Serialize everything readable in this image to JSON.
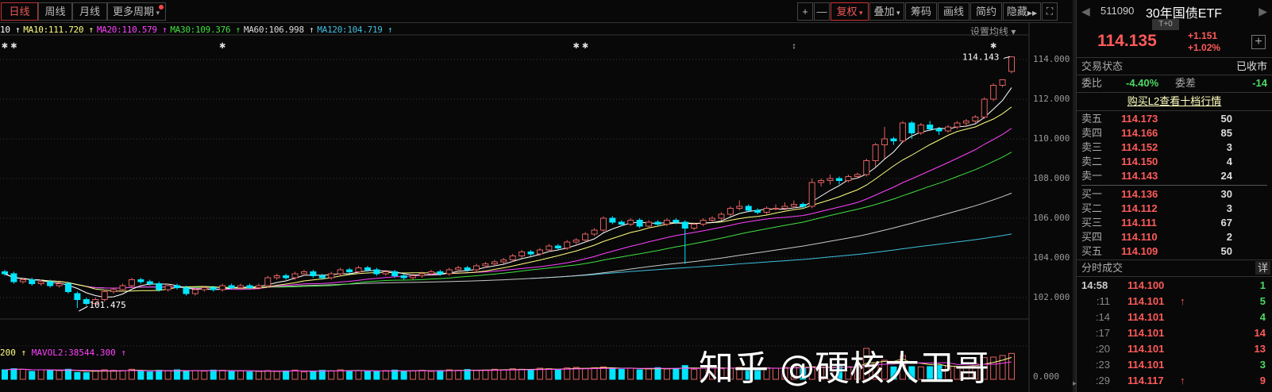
{
  "toolbar": {
    "period_tabs": [
      "日线",
      "周线",
      "月线",
      "更多周期"
    ],
    "active_tab": "日线",
    "buttons": [
      "+",
      "—",
      "复权",
      "叠加",
      "筹码",
      "画线",
      "简约",
      "隐藏"
    ],
    "fullscreen_icon": "expand-icon"
  },
  "ma_legend": {
    "ma5": "10 ↑",
    "ma10": "MA10:111.720 ↑",
    "ma20": "MA20:110.579 ↑",
    "ma30": "MA30:109.376 ↑",
    "ma60": "MA60:106.998 ↑",
    "ma120": "MA120:104.719 ↑",
    "settings": "设置均线 ▾"
  },
  "vol_legend": {
    "vol": "200 ↑",
    "mavol2": "MAVOL2:38544.300 ↑"
  },
  "colors": {
    "up": "#e06060",
    "down": "#00e5ff",
    "ma5": "#ffffff",
    "ma10": "#ffff80",
    "ma20": "#ff40ff",
    "ma30": "#40e040",
    "ma60": "#c8c8c8",
    "ma120": "#40c0e0"
  },
  "chart_data": {
    "type": "candlestick",
    "y_ticks": [
      "114.000",
      "112.000",
      "110.000",
      "108.000",
      "106.000",
      "104.000",
      "102.000"
    ],
    "ylim": [
      101.0,
      115.5
    ],
    "vol_ticks": [
      "0.000"
    ],
    "high_label": "114.143",
    "low_label": "101.475",
    "markers": [
      {
        "i": 0,
        "g": "✱"
      },
      {
        "i": 1,
        "g": "✱"
      },
      {
        "i": 24,
        "g": "✱"
      },
      {
        "i": 63,
        "g": "✱"
      },
      {
        "i": 64,
        "g": "✱"
      },
      {
        "i": 87,
        "g": "↕"
      },
      {
        "i": 109,
        "g": "✱"
      }
    ],
    "ohlc": [
      [
        103.3,
        103.4,
        103.1,
        103.2
      ],
      [
        103.2,
        103.3,
        102.7,
        102.8
      ],
      [
        102.8,
        103.0,
        102.7,
        102.9
      ],
      [
        102.9,
        103.0,
        102.6,
        102.7
      ],
      [
        102.7,
        102.9,
        102.6,
        102.8
      ],
      [
        102.8,
        102.9,
        102.5,
        102.6
      ],
      [
        102.6,
        102.8,
        102.5,
        102.7
      ],
      [
        102.7,
        102.8,
        102.2,
        102.3
      ],
      [
        102.2,
        102.3,
        101.475,
        101.9
      ],
      [
        101.9,
        102.0,
        101.6,
        101.7
      ],
      [
        101.7,
        102.0,
        101.6,
        101.9
      ],
      [
        101.9,
        102.4,
        101.8,
        102.3
      ],
      [
        102.3,
        102.5,
        102.2,
        102.4
      ],
      [
        102.4,
        102.7,
        102.3,
        102.6
      ],
      [
        102.6,
        103.0,
        102.5,
        102.9
      ],
      [
        102.9,
        103.0,
        102.7,
        102.8
      ],
      [
        102.8,
        102.9,
        102.6,
        102.7
      ],
      [
        102.7,
        102.8,
        102.3,
        102.4
      ],
      [
        102.4,
        102.7,
        102.3,
        102.6
      ],
      [
        102.6,
        102.7,
        102.4,
        102.5
      ],
      [
        102.5,
        102.6,
        102.1,
        102.2
      ],
      [
        102.2,
        102.5,
        102.1,
        102.4
      ],
      [
        102.4,
        102.6,
        102.3,
        102.5
      ],
      [
        102.5,
        102.6,
        102.3,
        102.4
      ],
      [
        102.4,
        102.7,
        102.3,
        102.6
      ],
      [
        102.6,
        102.7,
        102.4,
        102.5
      ],
      [
        102.5,
        102.7,
        102.4,
        102.6
      ],
      [
        102.6,
        102.7,
        102.4,
        102.5
      ],
      [
        102.5,
        102.7,
        102.4,
        102.6
      ],
      [
        102.6,
        103.1,
        102.5,
        103.0
      ],
      [
        103.0,
        103.2,
        102.9,
        103.1
      ],
      [
        103.1,
        103.2,
        102.9,
        103.0
      ],
      [
        103.0,
        103.3,
        102.9,
        103.2
      ],
      [
        103.2,
        103.4,
        103.1,
        103.3
      ],
      [
        103.3,
        103.4,
        103.0,
        103.1
      ],
      [
        103.1,
        103.2,
        102.9,
        103.0
      ],
      [
        103.0,
        103.3,
        102.9,
        103.2
      ],
      [
        103.2,
        103.5,
        103.1,
        103.4
      ],
      [
        103.4,
        103.5,
        103.2,
        103.3
      ],
      [
        103.3,
        103.6,
        103.2,
        103.5
      ],
      [
        103.5,
        103.6,
        103.3,
        103.4
      ],
      [
        103.4,
        103.5,
        103.1,
        103.2
      ],
      [
        103.2,
        103.4,
        103.1,
        103.3
      ],
      [
        103.3,
        103.4,
        103.0,
        103.1
      ],
      [
        103.1,
        103.2,
        102.9,
        103.0
      ],
      [
        103.0,
        103.2,
        102.9,
        103.1
      ],
      [
        103.1,
        103.3,
        103.0,
        103.2
      ],
      [
        103.2,
        103.4,
        103.1,
        103.3
      ],
      [
        103.3,
        103.4,
        103.1,
        103.2
      ],
      [
        103.2,
        103.5,
        103.1,
        103.4
      ],
      [
        103.4,
        103.6,
        103.3,
        103.5
      ],
      [
        103.5,
        103.6,
        103.3,
        103.4
      ],
      [
        103.4,
        103.7,
        103.3,
        103.6
      ],
      [
        103.6,
        103.8,
        103.5,
        103.7
      ],
      [
        103.7,
        103.9,
        103.6,
        103.8
      ],
      [
        103.8,
        104.0,
        103.7,
        103.9
      ],
      [
        103.9,
        104.2,
        103.8,
        104.1
      ],
      [
        104.1,
        104.4,
        104.0,
        104.3
      ],
      [
        104.3,
        104.4,
        104.1,
        104.2
      ],
      [
        104.2,
        104.5,
        104.1,
        104.4
      ],
      [
        104.4,
        104.7,
        104.3,
        104.6
      ],
      [
        104.6,
        104.7,
        104.4,
        104.5
      ],
      [
        104.5,
        104.9,
        104.4,
        104.8
      ],
      [
        104.8,
        105.0,
        104.7,
        104.9
      ],
      [
        104.9,
        105.3,
        104.8,
        105.2
      ],
      [
        105.2,
        105.5,
        105.1,
        105.4
      ],
      [
        105.4,
        106.1,
        105.3,
        106.0
      ],
      [
        106.0,
        106.1,
        105.7,
        105.8
      ],
      [
        105.8,
        105.9,
        105.6,
        105.7
      ],
      [
        105.7,
        106.0,
        105.6,
        105.9
      ],
      [
        105.9,
        106.0,
        105.5,
        105.6
      ],
      [
        105.6,
        105.9,
        105.5,
        105.8
      ],
      [
        105.8,
        105.9,
        105.6,
        105.7
      ],
      [
        105.7,
        106.0,
        105.6,
        105.9
      ],
      [
        105.9,
        106.0,
        105.7,
        105.8
      ],
      [
        105.8,
        105.9,
        103.7,
        105.5
      ],
      [
        105.5,
        105.8,
        105.4,
        105.7
      ],
      [
        105.7,
        106.0,
        105.6,
        105.9
      ],
      [
        105.9,
        106.1,
        105.8,
        106.0
      ],
      [
        106.0,
        106.3,
        105.9,
        106.2
      ],
      [
        106.2,
        106.6,
        106.1,
        106.5
      ],
      [
        106.5,
        106.9,
        106.4,
        106.6
      ],
      [
        106.6,
        106.7,
        106.3,
        106.4
      ],
      [
        106.4,
        106.5,
        106.2,
        106.3
      ],
      [
        106.3,
        106.6,
        106.2,
        106.5
      ],
      [
        106.5,
        106.7,
        106.4,
        106.5
      ],
      [
        106.5,
        106.8,
        106.4,
        106.6
      ],
      [
        106.6,
        106.9,
        106.5,
        106.7
      ],
      [
        106.7,
        106.8,
        106.5,
        106.6
      ],
      [
        106.6,
        108.0,
        106.5,
        107.8
      ],
      [
        107.8,
        108.0,
        107.6,
        107.9
      ],
      [
        107.9,
        108.2,
        107.7,
        108.0
      ],
      [
        108.0,
        108.1,
        107.7,
        107.9
      ],
      [
        107.9,
        108.2,
        107.8,
        108.1
      ],
      [
        108.1,
        108.3,
        108.0,
        108.2
      ],
      [
        108.2,
        109.0,
        108.1,
        108.9
      ],
      [
        108.9,
        109.8,
        108.6,
        109.7
      ],
      [
        109.7,
        110.6,
        109.0,
        110.0
      ],
      [
        110.0,
        110.1,
        109.7,
        109.9
      ],
      [
        109.9,
        110.9,
        109.8,
        110.8
      ],
      [
        110.8,
        110.9,
        110.0,
        110.3
      ],
      [
        110.3,
        110.8,
        110.2,
        110.7
      ],
      [
        110.7,
        110.9,
        110.4,
        110.5
      ],
      [
        110.5,
        110.6,
        110.2,
        110.4
      ],
      [
        110.4,
        110.7,
        110.3,
        110.6
      ],
      [
        110.6,
        110.9,
        110.5,
        110.8
      ],
      [
        110.8,
        111.0,
        110.6,
        110.9
      ],
      [
        110.9,
        111.2,
        110.8,
        111.1
      ],
      [
        111.1,
        112.1,
        111.0,
        112.0
      ],
      [
        112.0,
        112.8,
        111.9,
        112.7
      ],
      [
        112.7,
        113.0,
        112.6,
        112.98
      ],
      [
        113.4,
        114.143,
        113.3,
        114.135
      ]
    ],
    "volume": [
      36000,
      40000,
      38000,
      30000,
      36000,
      34000,
      33000,
      38000,
      26000,
      25000,
      32000,
      36000,
      34000,
      33000,
      38000,
      30000,
      28000,
      34000,
      32000,
      36000,
      30000,
      33000,
      31000,
      35000,
      34000,
      30000,
      32000,
      28000,
      30000,
      33000,
      30000,
      32000,
      35000,
      28000,
      30000,
      34000,
      32000,
      36000,
      31000,
      33000,
      30000,
      29000,
      33000,
      35000,
      31000,
      32000,
      34000,
      30000,
      33000,
      36000,
      34000,
      37000,
      33000,
      35000,
      38000,
      36000,
      40000,
      38000,
      35000,
      42000,
      40000,
      37000,
      43000,
      45000,
      41000,
      44000,
      47000,
      40000,
      38000,
      42000,
      36000,
      40000,
      44000,
      39000,
      41000,
      52000,
      38000,
      42000,
      45000,
      40000,
      43000,
      46000,
      40000,
      38000,
      44000,
      42000,
      45000,
      50000,
      43000,
      48000,
      46000,
      44000,
      50000,
      47000,
      45000,
      117000,
      58000,
      72000,
      47000,
      90000,
      48000,
      47000,
      48000,
      52000,
      52000,
      47000,
      46000,
      60000,
      82000,
      84000,
      90000,
      98000
    ]
  },
  "quote": {
    "code": "511090",
    "name": "30年国债ETF",
    "badge": "T+0",
    "price": "114.135",
    "change": "+1.151",
    "change_pct": "+1.02%",
    "add_icon": "plus-icon",
    "status_label": "交易状态",
    "status_value": "已收市",
    "weibi_label": "委比",
    "weibi_value": "-4.40%",
    "weicha_label": "委差",
    "weicha_value": "-14",
    "l2_link": "购买L2查看十档行情",
    "asks": [
      {
        "label": "卖五",
        "price": "114.173",
        "vol": "50"
      },
      {
        "label": "卖四",
        "price": "114.166",
        "vol": "85"
      },
      {
        "label": "卖三",
        "price": "114.152",
        "vol": "3"
      },
      {
        "label": "卖二",
        "price": "114.150",
        "vol": "4"
      },
      {
        "label": "卖一",
        "price": "114.143",
        "vol": "24"
      }
    ],
    "bids": [
      {
        "label": "买一",
        "price": "114.136",
        "vol": "30"
      },
      {
        "label": "买二",
        "price": "114.112",
        "vol": "3"
      },
      {
        "label": "买三",
        "price": "114.111",
        "vol": "67"
      },
      {
        "label": "买四",
        "price": "114.110",
        "vol": "2"
      },
      {
        "label": "买五",
        "price": "114.109",
        "vol": "50"
      }
    ],
    "ticks_title": "分时成交",
    "ticks_detail": "详",
    "ticks": [
      {
        "time": "14:58",
        "price": "114.100",
        "arrow": "",
        "vol": "1",
        "dir": "buy"
      },
      {
        "time": ":11",
        "price": "114.101",
        "arrow": "↑",
        "vol": "5",
        "dir": "buy"
      },
      {
        "time": ":14",
        "price": "114.101",
        "arrow": "",
        "vol": "4",
        "dir": "buy"
      },
      {
        "time": ":17",
        "price": "114.101",
        "arrow": "",
        "vol": "14",
        "dir": "sell"
      },
      {
        "time": ":20",
        "price": "114.101",
        "arrow": "",
        "vol": "13",
        "dir": "sell"
      },
      {
        "time": ":23",
        "price": "114.101",
        "arrow": "",
        "vol": "3",
        "dir": "buy"
      },
      {
        "time": ":29",
        "price": "114.117",
        "arrow": "↑",
        "vol": "9",
        "dir": "sell"
      }
    ]
  },
  "watermark": "知乎 @硬核大卫哥"
}
